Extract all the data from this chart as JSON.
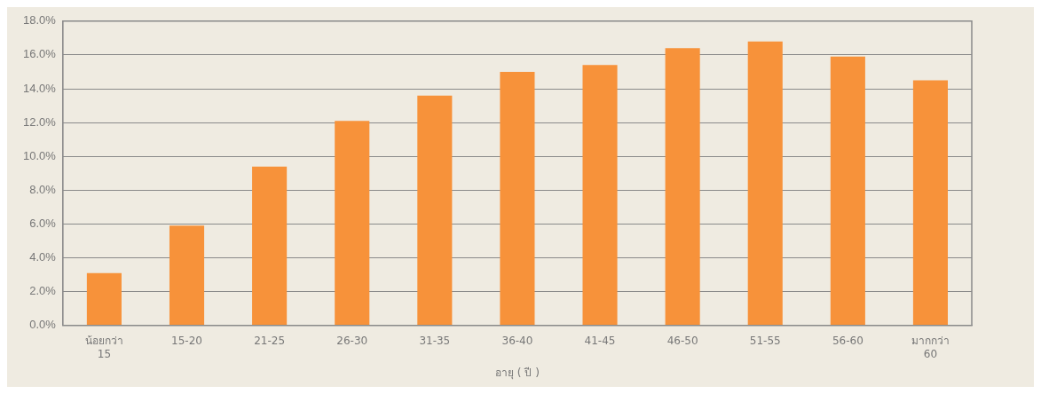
{
  "chart_data": {
    "type": "bar",
    "categories": [
      "น้อยกว่า 15",
      "15-20",
      "21-25",
      "26-30",
      "31-35",
      "36-40",
      "41-45",
      "46-50",
      "51-55",
      "56-60",
      "มากกว่า 60"
    ],
    "values": [
      3.1,
      5.9,
      9.4,
      12.1,
      13.6,
      15.0,
      15.4,
      16.4,
      16.8,
      15.9,
      14.5
    ],
    "color": "#f7923a",
    "xlabel": "อายุ ( ปี )",
    "ylim": [
      0,
      18
    ],
    "yticks": [
      {
        "value": 0,
        "label": "0.0%"
      },
      {
        "value": 2,
        "label": "2.0%"
      },
      {
        "value": 4,
        "label": "4.0%"
      },
      {
        "value": 6,
        "label": "6.0%"
      },
      {
        "value": 8,
        "label": "8.0%"
      },
      {
        "value": 10,
        "label": "10.0%"
      },
      {
        "value": 12,
        "label": "12.0%"
      },
      {
        "value": 14,
        "label": "14.0%"
      },
      {
        "value": 16,
        "label": "16.0%"
      },
      {
        "value": 18,
        "label": "18.0%"
      }
    ],
    "grid": "y"
  }
}
